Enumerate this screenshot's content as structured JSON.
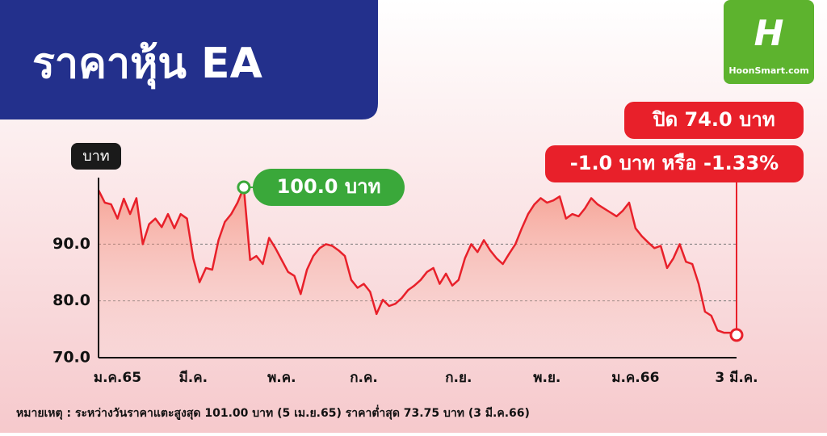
{
  "chart_data": {
    "type": "line",
    "title": "ราคาหุ้น EA",
    "logo": "HoonSmart.com",
    "y_label": "บาท",
    "peak_label": "100.0 บาท",
    "close_label": "ปิด 74.0 บาท",
    "change_label": "-1.0 บาท หรือ -1.33%",
    "note": "หมายเหตุ : ระหว่างวันราคาแตะสูงสุด 101.00 บาท (5 เม.ย.65) ราคาต่ำสุด 73.75 บาท (3 มี.ค.66)",
    "color": "#e8202a",
    "grid": true,
    "ylim": [
      70,
      101
    ],
    "yticks": [
      {
        "value": 70,
        "label": "70.0"
      },
      {
        "value": 80,
        "label": "80.0"
      },
      {
        "value": 90,
        "label": "90.0"
      }
    ],
    "xticks": [
      {
        "value": 3,
        "label": "ม.ค.65"
      },
      {
        "value": 15,
        "label": "มี.ค."
      },
      {
        "value": 29,
        "label": "พ.ค."
      },
      {
        "value": 42,
        "label": "ก.ค."
      },
      {
        "value": 57,
        "label": "ก.ย."
      },
      {
        "value": 71,
        "label": "พ.ย."
      },
      {
        "value": 85,
        "label": "ม.ค.66"
      },
      {
        "value": 101,
        "label": "3 มี.ค."
      }
    ],
    "values": [
      99.5,
      97.3,
      97,
      94.5,
      98,
      95.3,
      98.1,
      90,
      93.5,
      94.5,
      93,
      95.3,
      92.8,
      95.3,
      94.5,
      87.5,
      83.3,
      85.8,
      85.5,
      90.7,
      93.9,
      95.3,
      97.3,
      100,
      87.2,
      87.9,
      86.5,
      91.1,
      89.3,
      87.2,
      85.1,
      84.4,
      81.2,
      85.5,
      87.9,
      89.3,
      90,
      89.7,
      88.9,
      87.9,
      83.7,
      82.3,
      83,
      81.6,
      77.7,
      80.2,
      79.1,
      79.5,
      80.5,
      81.9,
      82.7,
      83.7,
      85.1,
      85.8,
      83,
      84.8,
      82.7,
      83.7,
      87.5,
      90,
      88.6,
      90.7,
      88.9,
      87.5,
      86.5,
      88.3,
      90,
      92.8,
      95.3,
      97,
      98.1,
      97.3,
      97.7,
      98.4,
      94.5,
      95.3,
      94.9,
      96.3,
      98.1,
      97,
      96.3,
      95.6,
      94.9,
      95.9,
      97.3,
      92.8,
      91.4,
      90.3,
      89.3,
      89.7,
      85.8,
      87.5,
      90,
      86.9,
      86.5,
      83,
      78.1,
      77.4,
      74.8,
      74.4,
      74.4,
      74
    ]
  }
}
